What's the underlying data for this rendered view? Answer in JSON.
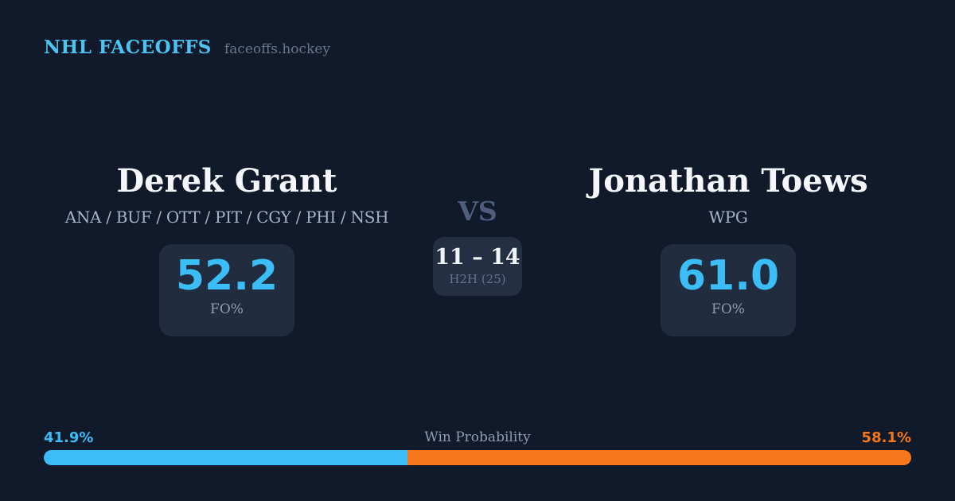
{
  "brand": {
    "title": "NHL FACEOFFS",
    "subtitle": "faceoffs.hockey"
  },
  "matchup": {
    "left": {
      "name": "Derek Grant",
      "teams": "ANA / BUF / OTT / PIT / CGY / PHI / NSH",
      "stat_value": "52.2",
      "stat_label": "FO%"
    },
    "vs_label": "VS",
    "h2h": {
      "score": "11 – 14",
      "label": "H2H (25)"
    },
    "right": {
      "name": "Jonathan Toews",
      "teams": "WPG",
      "stat_value": "61.0",
      "stat_label": "FO%"
    }
  },
  "win_probability": {
    "label": "Win Probability",
    "left_pct_label": "41.9%",
    "right_pct_label": "58.1%",
    "left_value": 41.9,
    "right_value": 58.1
  },
  "colors": {
    "background": "#111a2b",
    "card_box": "#212c3f",
    "accent_blue": "#3bbdf8",
    "accent_orange": "#f8771b"
  }
}
